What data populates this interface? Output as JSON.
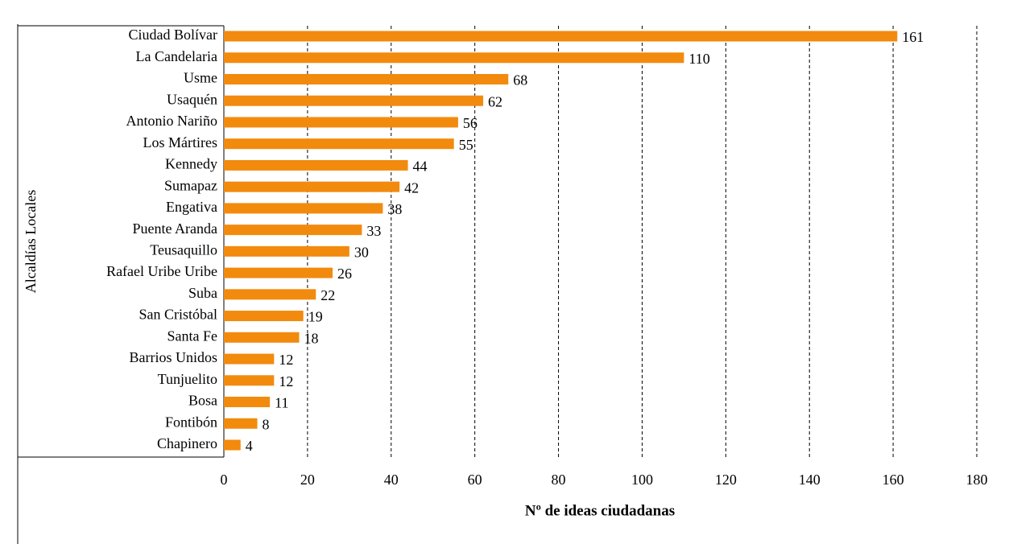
{
  "chart_data": {
    "type": "hbar",
    "x_label": "Nº de ideas ciudadanas",
    "y_label": "Alcaldías Locales",
    "categories": [
      "Ciudad Bolívar",
      "La Candelaria",
      "Usme",
      "Usaquén",
      "Antonio Nariño",
      "Los Mártires",
      "Kennedy",
      "Sumapaz",
      "Engativa",
      "Puente Aranda",
      "Teusaquillo",
      "Rafael Uribe Uribe",
      "Suba",
      "San Cristóbal",
      "Santa Fe",
      "Barrios Unidos",
      "Tunjuelito",
      "Bosa",
      "Fontibón",
      "Chapinero"
    ],
    "values": [
      161,
      110,
      68,
      62,
      56,
      55,
      44,
      42,
      38,
      33,
      30,
      26,
      22,
      19,
      18,
      12,
      12,
      11,
      8,
      4
    ],
    "color": "#f28a0e",
    "xlim": [
      0,
      180
    ],
    "xticks": [
      0,
      20,
      40,
      60,
      80,
      100,
      120,
      140,
      160,
      180
    ],
    "grid": true
  }
}
